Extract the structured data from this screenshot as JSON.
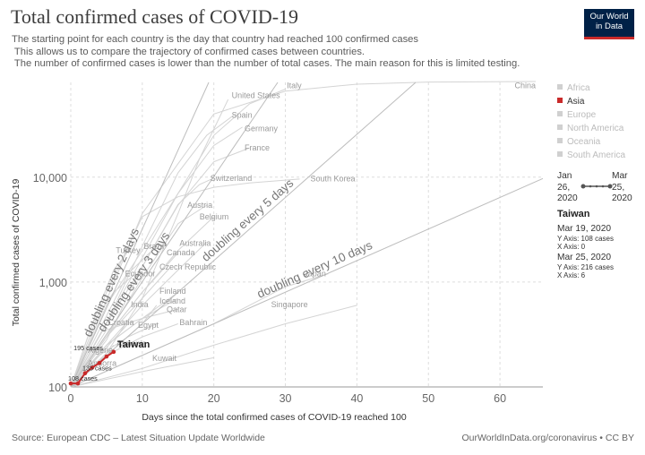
{
  "title": "Total confirmed cases of COVID-19",
  "subtitle": "The starting point for each country is the day that country had reached 100 confirmed cases\n This allows us to compare the trajectory of confirmed cases between countries.\n The number of confirmed cases is lower than the number of total cases. The main reason for this is limited testing.",
  "logo": {
    "line1": "Our World",
    "line2": "in Data"
  },
  "source": "Source: European CDC – Latest Situation Update Worldwide",
  "credit": "OurWorldInData.org/coronavirus • CC BY",
  "legend": {
    "regions": [
      {
        "name": "Africa",
        "active": false
      },
      {
        "name": "Asia",
        "active": true
      },
      {
        "name": "Europe",
        "active": false
      },
      {
        "name": "North America",
        "active": false
      },
      {
        "name": "Oceania",
        "active": false
      },
      {
        "name": "South America",
        "active": false
      }
    ],
    "date_start": {
      "line1": "Jan",
      "line2": "26,",
      "line3": "2020"
    },
    "date_end": {
      "line1": "Mar",
      "line2": "25,",
      "line3": "2020"
    }
  },
  "tooltip": {
    "country": "Taiwan",
    "start_date": "Mar 19, 2020",
    "start_y": "Y Axis: 108 cases",
    "start_x": "X Axis: 0",
    "end_date": "Mar 25, 2020",
    "end_y": "Y Axis: 216 cases",
    "end_x": "X Axis: 6"
  },
  "chart_data": {
    "type": "line",
    "title": "Total confirmed cases of COVID-19",
    "xlabel": "Days since the total confirmed cases of COVID-19 reached 100",
    "ylabel": "Total confirmed cases of COVID-19",
    "yscale": "log",
    "xlim": [
      0,
      66
    ],
    "ylim": [
      100,
      80000
    ],
    "x_ticks": [
      0,
      10,
      20,
      30,
      40,
      50,
      60
    ],
    "y_ticks": [
      {
        "value": 100,
        "label": "100"
      },
      {
        "value": 1000,
        "label": "1,000"
      },
      {
        "value": 10000,
        "label": "10,000"
      }
    ],
    "grid": true,
    "legend_position": "right",
    "doubling_lines": [
      {
        "label": "doubling every 2 days",
        "days": 2
      },
      {
        "label": "doubling every 3 days",
        "days": 3
      },
      {
        "label": "doubling every 5 days",
        "days": 5
      },
      {
        "label": "doubling every 10 days",
        "days": 10
      }
    ],
    "highlight_series": {
      "name": "Taiwan",
      "color": "#c92a2a",
      "x": [
        0,
        1,
        2,
        3,
        4,
        5,
        6
      ],
      "y": [
        108,
        108,
        135,
        153,
        169,
        195,
        216
      ],
      "point_labels": [
        {
          "x": 0,
          "y": 108,
          "text": "108 cases"
        },
        {
          "x": 2,
          "y": 135,
          "text": "135 cases"
        },
        {
          "x": 5,
          "y": 195,
          "text": "195 cases"
        }
      ]
    },
    "background_series": [
      {
        "name": "China",
        "x": [
          0,
          10,
          20,
          30,
          40,
          50,
          59,
          65
        ],
        "y": [
          100,
          4500,
          40000,
          66000,
          77000,
          80500,
          81200,
          81600
        ]
      },
      {
        "name": "Italy",
        "x": [
          0,
          10,
          15,
          20,
          25,
          30
        ],
        "y": [
          100,
          1700,
          7000,
          25000,
          50000,
          69000
        ]
      },
      {
        "name": "United States",
        "x": [
          0,
          5,
          10,
          15,
          18,
          22
        ],
        "y": [
          100,
          210,
          700,
          4500,
          15000,
          55000
        ]
      },
      {
        "name": "Spain",
        "x": [
          0,
          5,
          10,
          15,
          19,
          23
        ],
        "y": [
          100,
          400,
          2200,
          11000,
          25000,
          40000
        ]
      },
      {
        "name": "Germany",
        "x": [
          0,
          5,
          10,
          15,
          20,
          24
        ],
        "y": [
          100,
          600,
          2000,
          7000,
          20000,
          30000
        ]
      },
      {
        "name": "France",
        "x": [
          0,
          5,
          10,
          15,
          20,
          25
        ],
        "y": [
          100,
          280,
          1400,
          5400,
          14000,
          19000
        ]
      },
      {
        "name": "Switzerland",
        "x": [
          0,
          5,
          10,
          15,
          18,
          20
        ],
        "y": [
          100,
          400,
          1400,
          5500,
          8500,
          9800
        ]
      },
      {
        "name": "South Korea",
        "x": [
          0,
          5,
          10,
          15,
          20,
          25,
          32
        ],
        "y": [
          100,
          800,
          4200,
          6500,
          8000,
          8800,
          9600
        ]
      },
      {
        "name": "Austria",
        "x": [
          0,
          5,
          10,
          15,
          19
        ],
        "y": [
          100,
          300,
          1100,
          3600,
          5400
        ]
      },
      {
        "name": "Belgium",
        "x": [
          0,
          5,
          10,
          15,
          20
        ],
        "y": [
          100,
          300,
          800,
          2000,
          4200
        ]
      },
      {
        "name": "Brazil",
        "x": [
          0,
          4,
          8,
          12
        ],
        "y": [
          100,
          350,
          1200,
          2200
        ]
      },
      {
        "name": "Turkey",
        "x": [
          0,
          3,
          6,
          9
        ],
        "y": [
          100,
          400,
          1300,
          2400
        ]
      },
      {
        "name": "Australia",
        "x": [
          0,
          5,
          10,
          15,
          19
        ],
        "y": [
          100,
          250,
          600,
          1300,
          2400
        ]
      },
      {
        "name": "Canada",
        "x": [
          0,
          5,
          10,
          15
        ],
        "y": [
          100,
          300,
          800,
          1900
        ]
      },
      {
        "name": "Czech Republic",
        "x": [
          0,
          5,
          10,
          14
        ],
        "y": [
          100,
          300,
          700,
          1400
        ]
      },
      {
        "name": "Ecuador",
        "x": [
          0,
          3,
          6,
          9
        ],
        "y": [
          100,
          400,
          800,
          1200
        ]
      },
      {
        "name": "Japan",
        "x": [
          0,
          10,
          20,
          30,
          36
        ],
        "y": [
          100,
          200,
          400,
          900,
          1200
        ]
      },
      {
        "name": "Finland",
        "x": [
          0,
          5,
          10,
          15
        ],
        "y": [
          100,
          250,
          450,
          800
        ]
      },
      {
        "name": "Iceland",
        "x": [
          0,
          5,
          10,
          15
        ],
        "y": [
          100,
          250,
          450,
          700
        ]
      },
      {
        "name": "India",
        "x": [
          0,
          5,
          10,
          12
        ],
        "y": [
          100,
          200,
          400,
          600
        ]
      },
      {
        "name": "Qatar",
        "x": [
          0,
          5,
          10,
          15
        ],
        "y": [
          100,
          350,
          450,
          550
        ]
      },
      {
        "name": "Singapore",
        "x": [
          0,
          10,
          20,
          30,
          40
        ],
        "y": [
          100,
          150,
          250,
          400,
          600
        ]
      },
      {
        "name": "Bahrain",
        "x": [
          0,
          5,
          10,
          15
        ],
        "y": [
          100,
          200,
          300,
          400
        ]
      },
      {
        "name": "Croatia",
        "x": [
          0,
          4,
          8
        ],
        "y": [
          100,
          200,
          400
        ]
      },
      {
        "name": "Egypt",
        "x": [
          0,
          4,
          8,
          12
        ],
        "y": [
          100,
          200,
          300,
          400
        ]
      },
      {
        "name": "Armenia",
        "x": [
          0,
          3,
          6
        ],
        "y": [
          100,
          150,
          250
        ]
      },
      {
        "name": "Algeria",
        "x": [
          0,
          3,
          6
        ],
        "y": [
          100,
          150,
          220
        ]
      },
      {
        "name": "Andorra",
        "x": [
          0,
          2,
          4
        ],
        "y": [
          100,
          130,
          170
        ]
      },
      {
        "name": "Kuwait",
        "x": [
          0,
          10,
          20
        ],
        "y": [
          100,
          140,
          190
        ]
      }
    ],
    "country_labels": [
      {
        "text": "China",
        "x": 65,
        "y": 75000,
        "anchor": "end"
      },
      {
        "text": "Italy",
        "x": 30.2,
        "y": 75000,
        "anchor": "start"
      },
      {
        "text": "United States",
        "x": 22.5,
        "y": 60000,
        "anchor": "start"
      },
      {
        "text": "Spain",
        "x": 22.5,
        "y": 39000,
        "anchor": "start"
      },
      {
        "text": "Germany",
        "x": 24.3,
        "y": 29000,
        "anchor": "start"
      },
      {
        "text": "France",
        "x": 24.3,
        "y": 19000,
        "anchor": "start"
      },
      {
        "text": "Switzerland",
        "x": 19.5,
        "y": 9800,
        "anchor": "start"
      },
      {
        "text": "South Korea",
        "x": 33.5,
        "y": 9700,
        "anchor": "start"
      },
      {
        "text": "Austria",
        "x": 16.3,
        "y": 5400,
        "anchor": "start"
      },
      {
        "text": "Belgium",
        "x": 18,
        "y": 4200,
        "anchor": "start"
      },
      {
        "text": "Brazil",
        "x": 10.2,
        "y": 2200,
        "anchor": "start"
      },
      {
        "text": "Turkey",
        "x": 6.3,
        "y": 2000,
        "anchor": "start"
      },
      {
        "text": "Australia",
        "x": 15.2,
        "y": 2350,
        "anchor": "start"
      },
      {
        "text": "Canada",
        "x": 13.4,
        "y": 1900,
        "anchor": "start"
      },
      {
        "text": "Czech Republic",
        "x": 12.4,
        "y": 1400,
        "anchor": "start"
      },
      {
        "text": "Ecuador",
        "x": 7.6,
        "y": 1200,
        "anchor": "start"
      },
      {
        "text": "Japan",
        "x": 32.6,
        "y": 1200,
        "anchor": "start"
      },
      {
        "text": "Finland",
        "x": 12.4,
        "y": 820,
        "anchor": "start"
      },
      {
        "text": "Iceland",
        "x": 12.4,
        "y": 660,
        "anchor": "start"
      },
      {
        "text": "India",
        "x": 8.4,
        "y": 610,
        "anchor": "start"
      },
      {
        "text": "Qatar",
        "x": 13.4,
        "y": 550,
        "anchor": "start"
      },
      {
        "text": "Singapore",
        "x": 28,
        "y": 610,
        "anchor": "start"
      },
      {
        "text": "Bahrain",
        "x": 15.2,
        "y": 410,
        "anchor": "start"
      },
      {
        "text": "Croatia",
        "x": 5.2,
        "y": 410,
        "anchor": "start"
      },
      {
        "text": "Egypt",
        "x": 9.4,
        "y": 390,
        "anchor": "start"
      },
      {
        "text": "Armenia",
        "x": 6.4,
        "y": 260,
        "anchor": "start"
      },
      {
        "text": "Algeria",
        "x": 2.4,
        "y": 225,
        "anchor": "start"
      },
      {
        "text": "Andorra",
        "x": 2.4,
        "y": 168,
        "anchor": "start"
      },
      {
        "text": "Kuwait",
        "x": 11.4,
        "y": 188,
        "anchor": "start"
      }
    ]
  }
}
